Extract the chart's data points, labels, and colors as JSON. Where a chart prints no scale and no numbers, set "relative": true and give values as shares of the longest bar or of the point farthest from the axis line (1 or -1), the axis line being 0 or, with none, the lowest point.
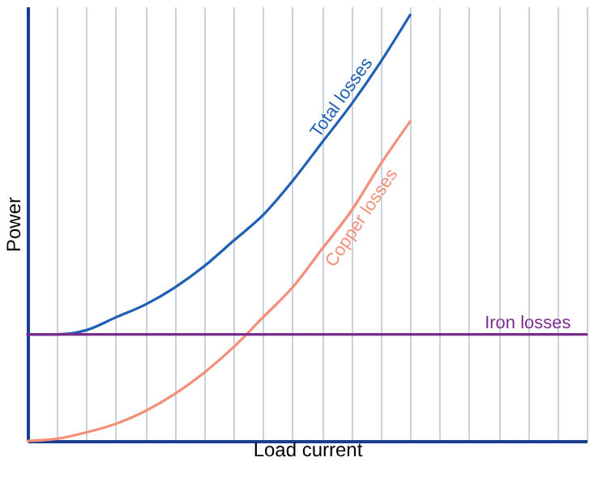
{
  "chart_data": {
    "type": "line",
    "relative": true,
    "xlabel": "Load current",
    "ylabel": "Power",
    "grid": "x",
    "legend": false,
    "categories": [
      null,
      null,
      null,
      null,
      null,
      null,
      null,
      null,
      null,
      null,
      null,
      null,
      null,
      null,
      null,
      null,
      null,
      null,
      null,
      null
    ],
    "series": [
      {
        "name": "Total losses",
        "color": "#1f5fb4",
        "values": [
          0.25,
          0.25,
          0.26,
          0.29,
          0.32,
          0.36,
          0.41,
          0.47,
          0.53,
          0.61,
          0.7,
          0.79,
          0.89,
          1.0,
          null,
          null,
          null,
          null,
          null,
          null
        ]
      },
      {
        "name": "Copper losses",
        "color": "#f4907a",
        "values": [
          0,
          0.005,
          0.02,
          0.04,
          0.07,
          0.11,
          0.16,
          0.22,
          0.29,
          0.36,
          0.45,
          0.54,
          0.65,
          0.75,
          null,
          null,
          null,
          null,
          null,
          null
        ]
      },
      {
        "name": "Iron losses",
        "color": "#7b2d8e",
        "values": [
          0.25,
          0.25,
          0.25,
          0.25,
          0.25,
          0.25,
          0.25,
          0.25,
          0.25,
          0.25,
          0.25,
          0.25,
          0.25,
          0.25,
          0.25,
          0.25,
          0.25,
          0.25,
          0.25,
          0.25
        ]
      }
    ]
  }
}
